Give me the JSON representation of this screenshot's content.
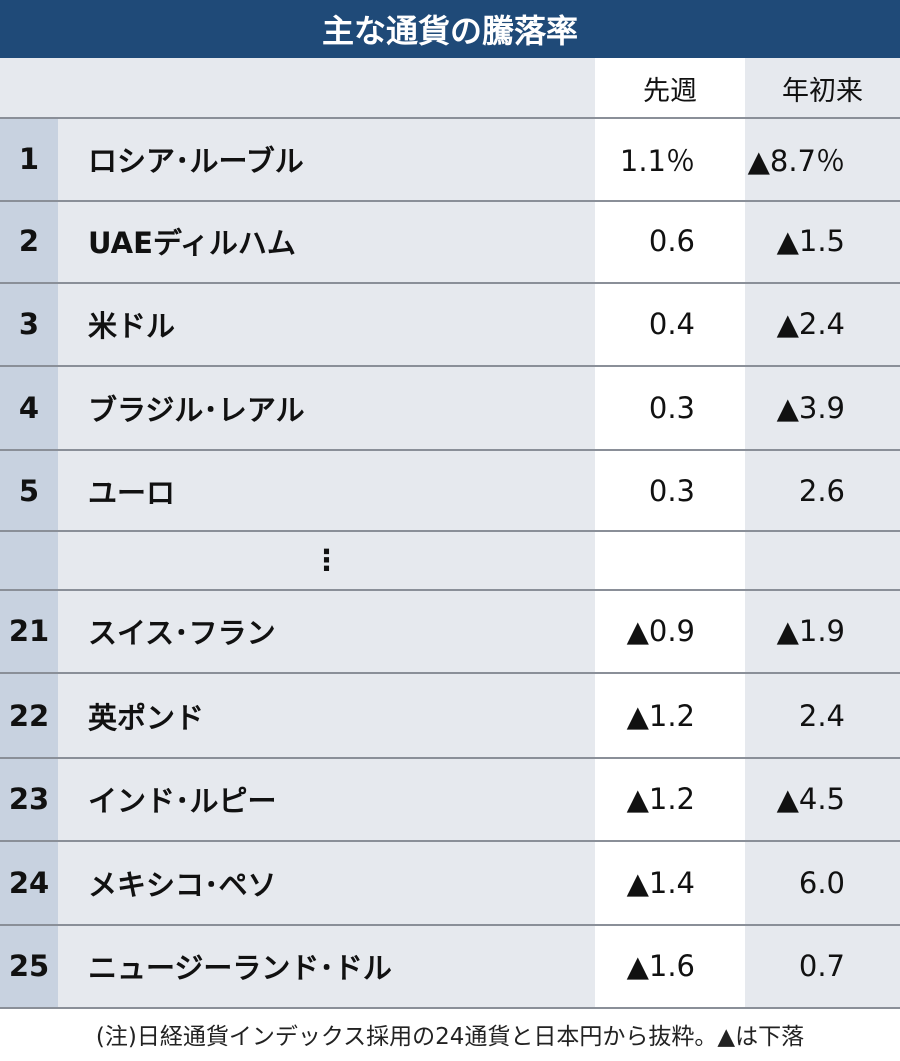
{
  "header": {
    "title": "主な通貨の騰落率",
    "columns": [
      "先週",
      "年初来"
    ]
  },
  "table": {
    "rows": [
      [
        "1",
        "ロシア･ルーブル",
        "1.1％",
        "▲8.7％"
      ],
      [
        "2",
        "UAEディルハム",
        "0.6",
        "▲1.5"
      ],
      [
        "3",
        "米ドル",
        "0.4",
        "▲2.4"
      ],
      [
        "4",
        "ブラジル･レアル",
        "0.3",
        "▲3.9"
      ],
      [
        "5",
        "ユーロ",
        "0.3",
        "2.6"
      ],
      [
        "21",
        "スイス･フラン",
        "▲0.9",
        "▲1.9"
      ],
      [
        "22",
        "英ポンド",
        "▲1.2",
        "2.4"
      ],
      [
        "23",
        "インド･ルピー",
        "▲1.2",
        "▲4.5"
      ],
      [
        "24",
        "メキシコ･ペソ",
        "▲1.4",
        "6.0"
      ],
      [
        "25",
        "ニュージーランド･ドル",
        "▲1.6",
        "0.7"
      ]
    ],
    "ellipsis": "⋮"
  },
  "footnote": "(注)日経通貨インデックス採用の24通貨と日本円から抜粋。▲は下落"
}
